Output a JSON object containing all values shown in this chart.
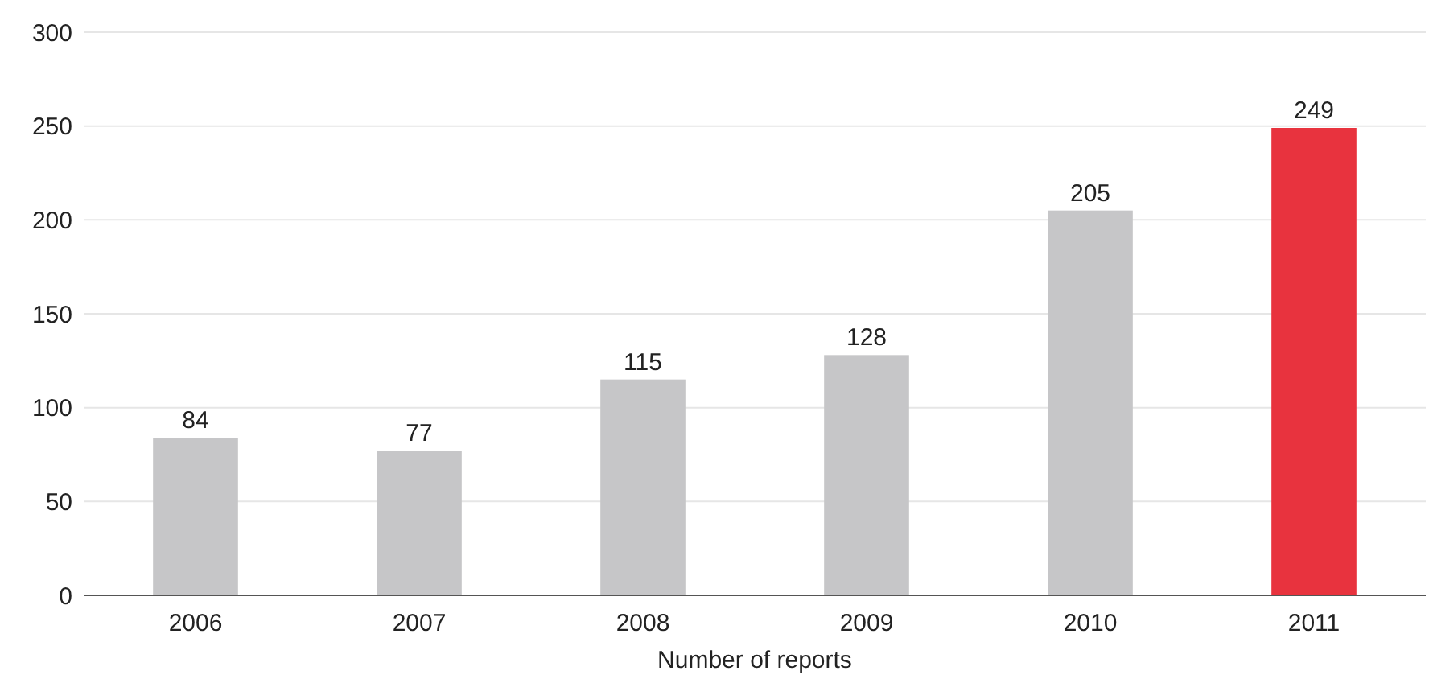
{
  "chart_data": {
    "type": "bar",
    "xlabel": "Number of reports",
    "categories": [
      "2006",
      "2007",
      "2008",
      "2009",
      "2010",
      "2011"
    ],
    "values": [
      84,
      77,
      115,
      128,
      205,
      249
    ],
    "colors": [
      "#c6c6c8",
      "#c6c6c8",
      "#c6c6c8",
      "#c6c6c8",
      "#c6c6c8",
      "#e8333e"
    ],
    "ylim": [
      0,
      300
    ],
    "yticks": [
      0,
      50,
      100,
      150,
      200,
      250,
      300
    ],
    "grid": "y",
    "data_labels": true
  }
}
